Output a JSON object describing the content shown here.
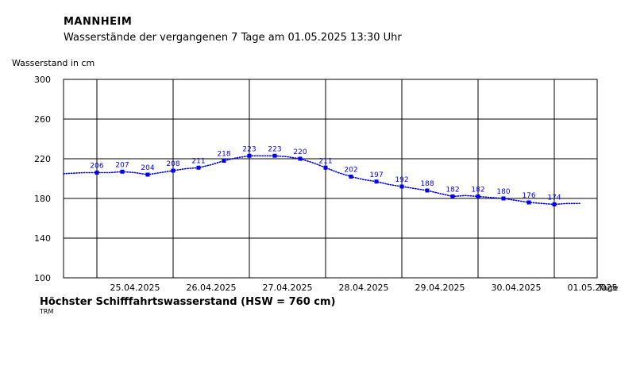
{
  "header": {
    "station": "MANNHEIM",
    "subtitle": "Wasserstände der vergangenen 7 Tage am 01.05.2025 13:30 Uhr"
  },
  "footer": {
    "hsw_text": "Höchster Schifffahrtswasserstand (HSW = 760 cm)",
    "source": "TRM"
  },
  "colors": {
    "series": "#0000ee",
    "grid": "#000000"
  },
  "chart_data": {
    "type": "line",
    "ylabel": "Wasserstand in cm",
    "xlabel": "Tage",
    "ylim": [
      100,
      300
    ],
    "yticks": [
      100,
      140,
      180,
      220,
      260,
      300
    ],
    "xlim": [
      "24.04.2025 13:30",
      "01.05.2025 13:30"
    ],
    "xtick_labels": [
      "25.04.2025",
      "26.04.2025",
      "27.04.2025",
      "28.04.2025",
      "29.04.2025",
      "30.04.2025",
      "01.05.2025"
    ],
    "grid": true,
    "series": [
      {
        "labeled_points": [
          {
            "x": "25.04.2025 00:00",
            "y": 206
          },
          {
            "x": "25.04.2025 08:00",
            "y": 207
          },
          {
            "x": "25.04.2025 16:00",
            "y": 204
          },
          {
            "x": "26.04.2025 00:00",
            "y": 208
          },
          {
            "x": "26.04.2025 08:00",
            "y": 211
          },
          {
            "x": "26.04.2025 16:00",
            "y": 218
          },
          {
            "x": "27.04.2025 00:00",
            "y": 223
          },
          {
            "x": "27.04.2025 08:00",
            "y": 223
          },
          {
            "x": "27.04.2025 16:00",
            "y": 220
          },
          {
            "x": "28.04.2025 00:00",
            "y": 211
          },
          {
            "x": "28.04.2025 08:00",
            "y": 202
          },
          {
            "x": "28.04.2025 16:00",
            "y": 197
          },
          {
            "x": "29.04.2025 00:00",
            "y": 192
          },
          {
            "x": "29.04.2025 08:00",
            "y": 188
          },
          {
            "x": "29.04.2025 16:00",
            "y": 182
          },
          {
            "x": "30.04.2025 00:00",
            "y": 182
          },
          {
            "x": "30.04.2025 08:00",
            "y": 180
          },
          {
            "x": "30.04.2025 16:00",
            "y": 176
          },
          {
            "x": "01.05.2025 00:00",
            "y": 174
          }
        ],
        "line": [
          {
            "x": "24.04.2025 13:30",
            "y": 205
          },
          {
            "x": "24.04.2025 20:00",
            "y": 206
          },
          {
            "x": "25.04.2025 04:00",
            "y": 206
          },
          {
            "x": "25.04.2025 08:00",
            "y": 207
          },
          {
            "x": "25.04.2025 12:00",
            "y": 206
          },
          {
            "x": "25.04.2025 16:00",
            "y": 204
          },
          {
            "x": "25.04.2025 20:00",
            "y": 206
          },
          {
            "x": "26.04.2025 00:00",
            "y": 208
          },
          {
            "x": "26.04.2025 04:00",
            "y": 210
          },
          {
            "x": "26.04.2025 08:00",
            "y": 211
          },
          {
            "x": "26.04.2025 12:00",
            "y": 214
          },
          {
            "x": "26.04.2025 16:00",
            "y": 218
          },
          {
            "x": "26.04.2025 20:00",
            "y": 221
          },
          {
            "x": "27.04.2025 00:00",
            "y": 223
          },
          {
            "x": "27.04.2025 04:00",
            "y": 223
          },
          {
            "x": "27.04.2025 08:00",
            "y": 223
          },
          {
            "x": "27.04.2025 12:00",
            "y": 222
          },
          {
            "x": "27.04.2025 16:00",
            "y": 220
          },
          {
            "x": "27.04.2025 20:00",
            "y": 216
          },
          {
            "x": "28.04.2025 00:00",
            "y": 211
          },
          {
            "x": "28.04.2025 04:00",
            "y": 206
          },
          {
            "x": "28.04.2025 08:00",
            "y": 202
          },
          {
            "x": "28.04.2025 12:00",
            "y": 199
          },
          {
            "x": "28.04.2025 16:00",
            "y": 197
          },
          {
            "x": "28.04.2025 20:00",
            "y": 194
          },
          {
            "x": "29.04.2025 00:00",
            "y": 192
          },
          {
            "x": "29.04.2025 04:00",
            "y": 190
          },
          {
            "x": "29.04.2025 08:00",
            "y": 188
          },
          {
            "x": "29.04.2025 12:00",
            "y": 185
          },
          {
            "x": "29.04.2025 16:00",
            "y": 182
          },
          {
            "x": "29.04.2025 20:00",
            "y": 183
          },
          {
            "x": "30.04.2025 00:00",
            "y": 182
          },
          {
            "x": "30.04.2025 04:00",
            "y": 181
          },
          {
            "x": "30.04.2025 08:00",
            "y": 180
          },
          {
            "x": "30.04.2025 12:00",
            "y": 178
          },
          {
            "x": "30.04.2025 16:00",
            "y": 176
          },
          {
            "x": "30.04.2025 20:00",
            "y": 175
          },
          {
            "x": "01.05.2025 00:00",
            "y": 174
          },
          {
            "x": "01.05.2025 04:00",
            "y": 175
          },
          {
            "x": "01.05.2025 08:00",
            "y": 175
          }
        ]
      }
    ]
  }
}
